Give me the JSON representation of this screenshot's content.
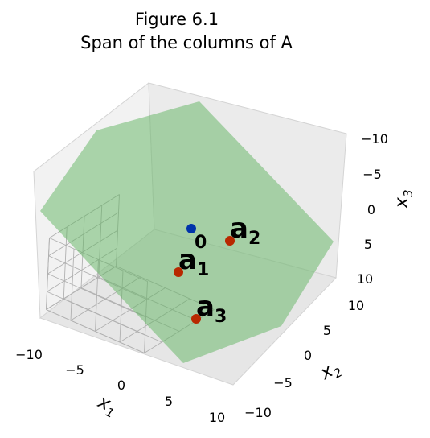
{
  "chart_data": {
    "type": "scatter3d",
    "title": [
      "Figure 6.1",
      "Span of the columns of A"
    ],
    "axes": [
      {
        "name": "x",
        "sub": "1",
        "range": [
          -10,
          10
        ],
        "ticks": [
          "−10",
          "−5",
          "0",
          "5",
          "10"
        ]
      },
      {
        "name": "x",
        "sub": "2",
        "range": [
          -10,
          10
        ],
        "ticks": [
          "−10",
          "−5",
          "0",
          "5",
          "10"
        ]
      },
      {
        "name": "x",
        "sub": "3",
        "range": [
          -10,
          10
        ],
        "ticks": [
          "−10",
          "−5",
          "0",
          "5",
          "10"
        ]
      }
    ],
    "plane": {
      "label": "span of columns of A",
      "color": "#5fb45f",
      "opacity": 0.5
    },
    "points": [
      {
        "label": "0",
        "sub": "",
        "color": "#0033aa",
        "x": 0,
        "y": 0,
        "z": 0
      },
      {
        "label": "a",
        "sub": "1",
        "color": "#b82800",
        "x": 1,
        "y": -2,
        "z": -2
      },
      {
        "label": "a",
        "sub": "2",
        "color": "#b82800",
        "x": 2,
        "y": 2,
        "z": -4
      },
      {
        "label": "a",
        "sub": "3",
        "color": "#b82800",
        "x": 5,
        "y": -2,
        "z": -4
      }
    ],
    "grid": true,
    "panes_color": "#f2f2f2"
  }
}
